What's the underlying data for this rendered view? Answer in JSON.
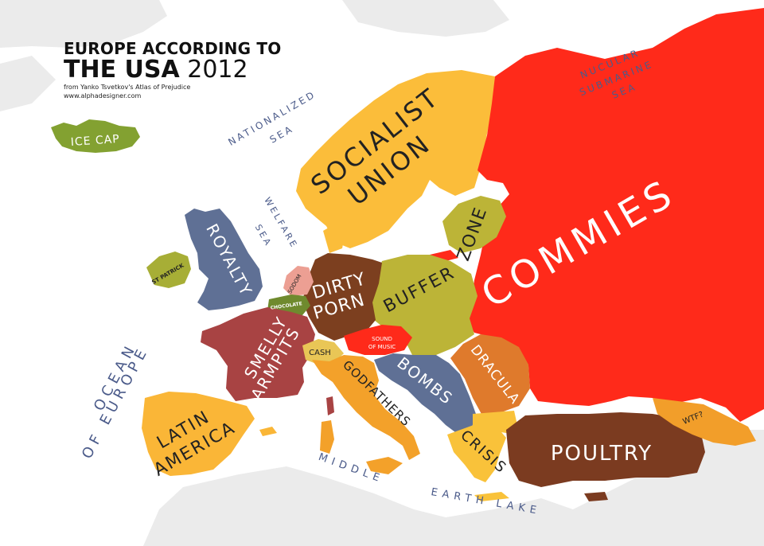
{
  "header": {
    "title_line1": "EUROPE ACCORDING TO",
    "title_line2_bold": "THE USA",
    "title_line2_year": "2012",
    "credit": "from Yanko Tsvetkov's Atlas of Prejudice",
    "website": "www.alphadesigner.com"
  },
  "colors": {
    "sea": "#ffffff",
    "land_background": "#ebebeb",
    "russia_red": "#ff2a1a",
    "scandinavia_orange": "#fbbd3a",
    "france_red": "#a84343",
    "germany_brown": "#7c3f1f",
    "olive": "#bcb437",
    "blue_grey": "#5f7095",
    "iberia_orange": "#fab637",
    "italy_orange": "#f3a12a",
    "romania_orange": "#df7a2c",
    "turkey_brown": "#7b3b20",
    "iceland_green": "#83a131",
    "ireland_olive": "#a7ae36",
    "caucasus_orange": "#f29e2a",
    "sea_label": "#4b5b8a"
  },
  "regions": {
    "russia": "COMMIES",
    "scandinavia_line1": "SOCIALIST",
    "scandinavia_line2": "UNION",
    "buffer_zone_line1": "BUFFER",
    "buffer_zone_line2": "ZONE",
    "germany_line1": "DIRTY",
    "germany_line2": "PORN",
    "france_line1": "SMELLY",
    "france_line2": "ARMPITS",
    "britain": "ROYALTY",
    "ireland": "ST PATRICK",
    "iceland": "ICE CAP",
    "netherlands": "SODOM",
    "belgium": "CHOCOLATE",
    "switzerland": "CASH",
    "austria_line1": "SOUND",
    "austria_line2": "OF MUSIC",
    "italy": "GODFATHERS",
    "balkans": "BOMBS",
    "romania": "DRACULA",
    "greece": "CRISIS",
    "turkey": "POULTRY",
    "caucasus": "WTF?",
    "iberia_line1": "LATIN",
    "iberia_line2": "AMERICA"
  },
  "seas": {
    "north_sea_line1": "NATIONALIZED",
    "north_sea_line2": "SEA",
    "baltic_line1": "WELFARE",
    "baltic_line2": "SEA",
    "arctic_line1": "NUCULAR",
    "arctic_line2": "SUBMARINE",
    "arctic_line3": "SEA",
    "atlantic_line1": "OCEAN",
    "atlantic_line2": "OF EUROPE",
    "mediterranean_line1": "MIDDLE",
    "mediterranean_line2": "EARTH LAKE"
  }
}
